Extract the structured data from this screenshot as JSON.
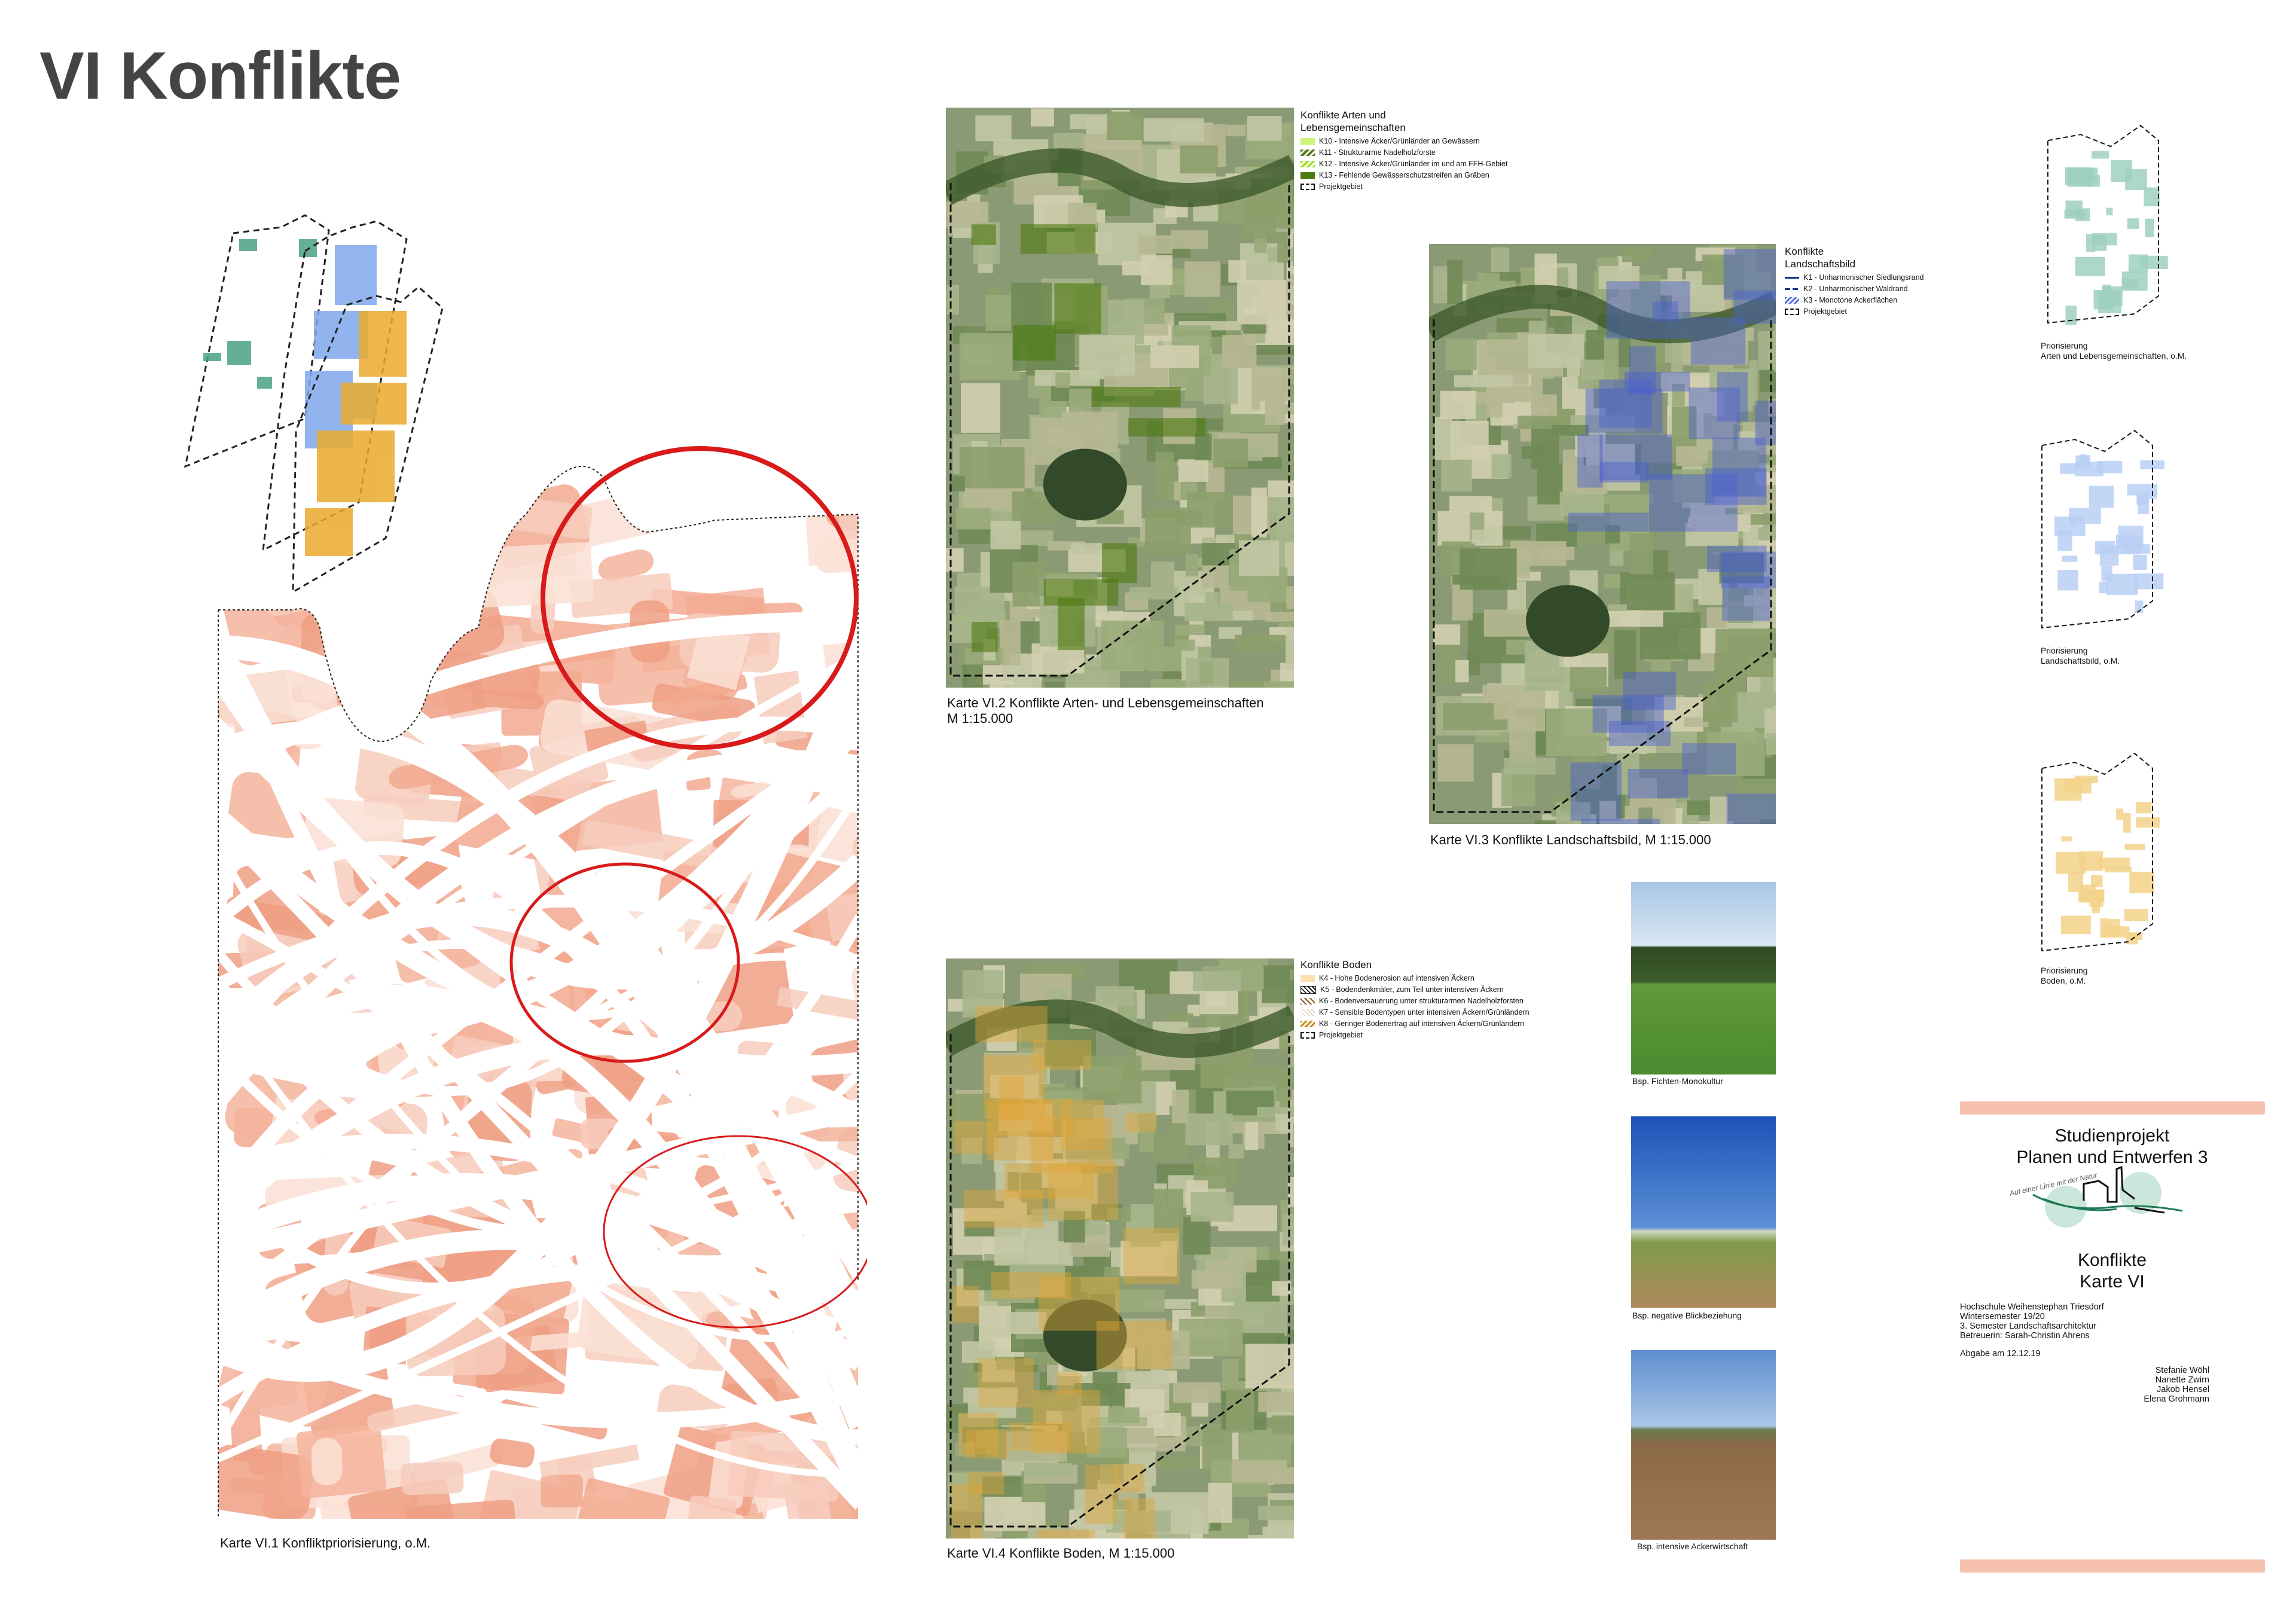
{
  "page": {
    "title": "VI Konflikte"
  },
  "maps": {
    "priorisierung": {
      "caption": "Karte VI.1 Konfliktpriorisierung, o.M."
    },
    "arten": {
      "caption_line1": "Karte VI.2 Konflikte Arten- und Lebensgemeinschaften",
      "caption_line2": "M 1:15.000",
      "legend": {
        "title_line1": "Konflikte Arten und",
        "title_line2": "Lebensgemeinschaften",
        "items": [
          {
            "label": "K10 - Intensive Äcker/Grünländer an Gewässern",
            "color": "#ccf57a"
          },
          {
            "label": "K11 - Strukturarme Nadelholzforste",
            "color": "#5a7a1e"
          },
          {
            "label": "K12 - Intensive Äcker/Grünländer im und am FFH-Gebiet",
            "color": "#a6e22e"
          },
          {
            "label": "K13 - Fehlende Gewässerschutzstreifen an Gräben",
            "color": "#4d7a0f"
          },
          {
            "label": "Projektgebiet",
            "color": "#111111"
          }
        ]
      }
    },
    "landschaftsbild": {
      "caption": "Karte VI.3 Konflikte Landschaftsbild, M 1:15.000",
      "legend": {
        "title_line1": "Konflikte",
        "title_line2": "Landschaftsbild",
        "items": [
          {
            "label": "K1 - Unharmonischer Siedlungsrand",
            "color": "#1a2f8a"
          },
          {
            "label": "K2 - Unharmonischer Waldrand",
            "color": "#1a2f8a"
          },
          {
            "label": "K3 - Monotone Ackerflächen",
            "color": "#5a72e0"
          },
          {
            "label": "Projektgebiet",
            "color": "#111111"
          }
        ]
      }
    },
    "boden": {
      "caption": "Karte VI.4 Konflikte Boden, M 1:15.000",
      "legend": {
        "title": "Konflikte Boden",
        "items": [
          {
            "label": "K4 - Hohe Bodenerosion auf intensiven Äckern",
            "color": "#fbe0b0"
          },
          {
            "label": "K5 - Bodendenkmäler, zum Teil unter intensiven Äckern",
            "color": "#222222"
          },
          {
            "label": "K6 - Bodenversauerung unter strukturarmen Nadelholzforsten",
            "color": "#8a5a20"
          },
          {
            "label": "K7 - Sensible Bodentypen unter intensiven Äckern/Grünländern",
            "color": "#c9b98a"
          },
          {
            "label": "K8 - Geringer Bodenertrag auf intensiven Äckern/Grünländern",
            "color": "#c98a1e"
          },
          {
            "label": "Projektgebiet",
            "color": "#111111"
          }
        ]
      }
    }
  },
  "priorisierung_small": [
    {
      "line1": "Priorisierung",
      "line2": "Arten und Lebensgemeinschaften, o.M.",
      "color": "#9fd0bd"
    },
    {
      "line1": "Priorisierung",
      "line2": "Landschaftsbild, o.M.",
      "color": "#b9cff5"
    },
    {
      "line1": "Priorisierung",
      "line2": "Boden, o.M.",
      "color": "#f3d28a"
    }
  ],
  "photos": [
    {
      "caption": "Bsp. Fichten-Monokultur"
    },
    {
      "caption": "Bsp. negative Blickbeziehung"
    },
    {
      "caption": "Bsp. intensive Ackerwirtschaft"
    }
  ],
  "titleblock": {
    "line1": "Studienprojekt",
    "line2": "Planen und Entwerfen 3",
    "logo_text": "Auf einer Linie mit der Natur",
    "subject_line1": "Konflikte",
    "subject_line2": "Karte VI",
    "info": [
      "Hochschule Weihenstephan Triesdorf",
      "Wintersemester 19/20",
      "3. Semester Landschaftsarchitektur",
      "Betreuerin: Sarah-Christin Ahrens"
    ],
    "due": "Abgabe am 12.12.19",
    "authors": [
      "Stefanie Wöhl",
      "Nanette Zwirn",
      "Jakob Hensel",
      "Elena Grohmann"
    ]
  },
  "colors": {
    "priority": "#f0a78e",
    "circle": "#d81a1a",
    "title": "#444444"
  }
}
